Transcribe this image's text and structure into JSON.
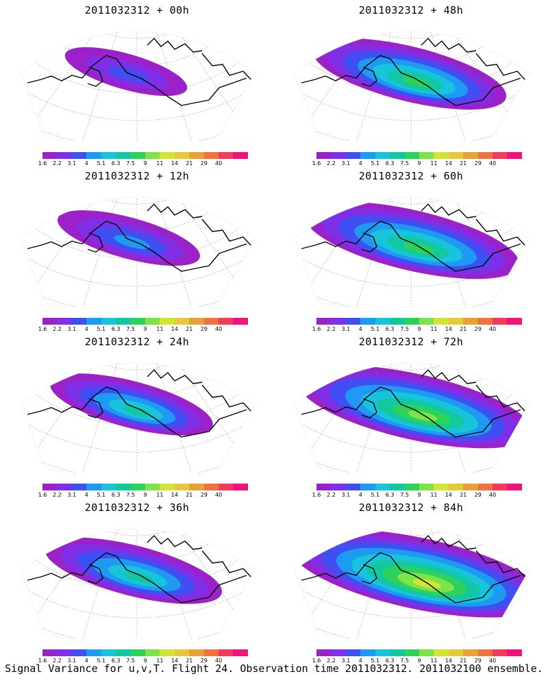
{
  "chart_data": {
    "type": "map-panels",
    "caption": "Signal Variance for u,v,T. Flight 24. Observation time 2011032312. 2011032100 ensemble.",
    "colorbar": {
      "colors": [
        "#9a22c8",
        "#7f30e6",
        "#3f4ff2",
        "#1f9af2",
        "#18c4dc",
        "#12c8a0",
        "#2cd25a",
        "#7ee24a",
        "#d2e434",
        "#e6c83c",
        "#e8a038",
        "#ef7240",
        "#f43a5a",
        "#f0147a"
      ],
      "ticks": [
        "1.6",
        "2.2",
        "3.1",
        "4",
        "5.1",
        "6.3",
        "7.5",
        "9",
        "11",
        "14",
        "21",
        "29",
        "40"
      ]
    },
    "panels": [
      {
        "title": "2011032312 + 00h",
        "lead_h": 0,
        "intensity": 0.3,
        "spread": 0.35
      },
      {
        "title": "2011032312 + 48h",
        "lead_h": 48,
        "intensity": 0.6,
        "spread": 0.7
      },
      {
        "title": "2011032312 + 12h",
        "lead_h": 12,
        "intensity": 0.4,
        "spread": 0.45
      },
      {
        "title": "2011032312 + 60h",
        "lead_h": 60,
        "intensity": 0.65,
        "spread": 0.8
      },
      {
        "title": "2011032312 + 24h",
        "lead_h": 24,
        "intensity": 0.5,
        "spread": 0.55
      },
      {
        "title": "2011032312 + 72h",
        "lead_h": 72,
        "intensity": 0.7,
        "spread": 0.9
      },
      {
        "title": "2011032312 + 36h",
        "lead_h": 36,
        "intensity": 0.55,
        "spread": 0.62
      },
      {
        "title": "2011032312 + 84h",
        "lead_h": 84,
        "intensity": 0.78,
        "spread": 1.0
      }
    ]
  }
}
